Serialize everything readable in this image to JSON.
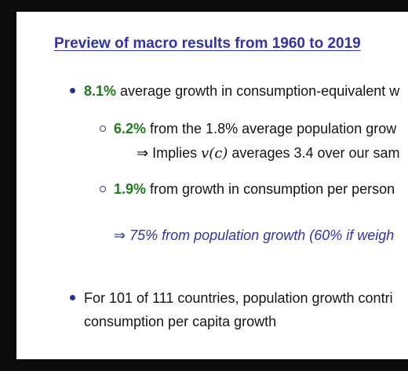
{
  "slide": {
    "title": "Preview of macro results from 1960 to 2019",
    "bullet1": {
      "value": "8.1%",
      "text": " average growth in consumption-equivalent w",
      "sub1": {
        "value": "6.2%",
        "text": " from the 1.8% average population grow",
        "implies": {
          "arrow": "⇒",
          "prefix": " Implies ",
          "math": "v(c)",
          "suffix": " averages 3.4 over our sam"
        }
      },
      "sub2": {
        "value": "1.9%",
        "text": " from growth in consumption per person"
      },
      "conclusion": {
        "arrow": "⇒",
        "text": " 75% from population growth (60% if weigh"
      }
    },
    "bullet2": {
      "line1": "For 101 of 111 countries, population growth contri",
      "line2": "consumption per capita growth"
    }
  },
  "colors": {
    "title": "#3333a6",
    "highlight": "#1f7a1f",
    "text": "#141414",
    "background": "#0b0b0b"
  }
}
